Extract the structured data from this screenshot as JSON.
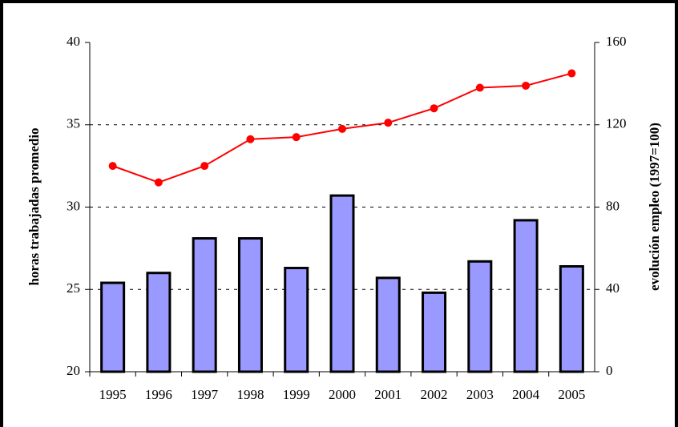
{
  "chart_data": {
    "type": "bar-line",
    "categories": [
      "1995",
      "1996",
      "1997",
      "1998",
      "1999",
      "2000",
      "2001",
      "2002",
      "2003",
      "2004",
      "2005"
    ],
    "y_label": "horas trabajadas promedio",
    "y2_label": "evolución empleo (1997=100)",
    "ylim": [
      20,
      40
    ],
    "yticks": [
      20,
      25,
      30,
      35,
      40
    ],
    "y2lim": [
      0,
      160
    ],
    "y2ticks": [
      0,
      40,
      80,
      120,
      160
    ],
    "grid": true,
    "series": [
      {
        "type": "bar",
        "color": "#9999ff",
        "values": [
          25.4,
          26.0,
          28.1,
          28.1,
          26.3,
          30.7,
          25.7,
          24.8,
          26.7,
          29.2,
          26.4
        ]
      },
      {
        "type": "line",
        "axis": "y2",
        "color": "#ff0000",
        "values": [
          100,
          92,
          100,
          113,
          114,
          118,
          121,
          128,
          138,
          139,
          145
        ]
      }
    ]
  }
}
